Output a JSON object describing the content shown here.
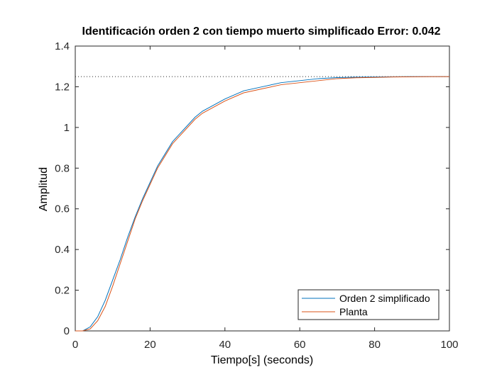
{
  "chart_data": {
    "type": "line",
    "title": "Identificación orden 2 con tiempo muerto simplificado Error: 0.042",
    "xlabel": "Tiempo[s] (seconds)",
    "ylabel": "Amplitud",
    "xlim": [
      0,
      100
    ],
    "ylim": [
      0,
      1.4
    ],
    "xticks": [
      0,
      20,
      40,
      60,
      80,
      100
    ],
    "yticks": [
      0,
      0.2,
      0.4,
      0.6,
      0.8,
      1,
      1.2,
      1.4
    ],
    "xtick_labels": [
      "0",
      "20",
      "40",
      "60",
      "80",
      "100"
    ],
    "ytick_labels": [
      "0",
      "0.2",
      "0.4",
      "0.6",
      "0.8",
      "1",
      "1.2",
      "1.4"
    ],
    "grid": false,
    "legend_position": "bottom-right",
    "reference_line": {
      "y": 1.25,
      "style": "dotted"
    },
    "series": [
      {
        "name": "Orden 2 simplificado",
        "color": "#0072BD",
        "x": [
          0,
          2,
          4,
          6,
          8,
          10,
          12,
          14,
          16,
          18,
          20,
          22,
          24,
          26,
          28,
          30,
          32,
          34,
          36,
          38,
          40,
          45,
          50,
          55,
          60,
          65,
          70,
          75,
          80,
          85,
          90,
          95,
          100
        ],
        "y": [
          0,
          0.0,
          0.02,
          0.07,
          0.15,
          0.25,
          0.35,
          0.46,
          0.56,
          0.65,
          0.73,
          0.81,
          0.87,
          0.93,
          0.97,
          1.01,
          1.05,
          1.08,
          1.1,
          1.12,
          1.14,
          1.18,
          1.2,
          1.22,
          1.23,
          1.24,
          1.245,
          1.247,
          1.248,
          1.249,
          1.25,
          1.25,
          1.25
        ]
      },
      {
        "name": "Planta",
        "color": "#D95319",
        "x": [
          0,
          2,
          4,
          6,
          8,
          10,
          12,
          14,
          16,
          18,
          20,
          22,
          24,
          26,
          28,
          30,
          32,
          34,
          36,
          38,
          40,
          45,
          50,
          55,
          60,
          65,
          70,
          75,
          80,
          85,
          90,
          95,
          100
        ],
        "y": [
          0,
          0.0,
          0.01,
          0.05,
          0.12,
          0.22,
          0.33,
          0.44,
          0.55,
          0.64,
          0.72,
          0.8,
          0.86,
          0.92,
          0.96,
          1.0,
          1.04,
          1.07,
          1.09,
          1.11,
          1.13,
          1.17,
          1.19,
          1.21,
          1.22,
          1.23,
          1.24,
          1.244,
          1.246,
          1.248,
          1.249,
          1.25,
          1.25
        ]
      }
    ]
  }
}
